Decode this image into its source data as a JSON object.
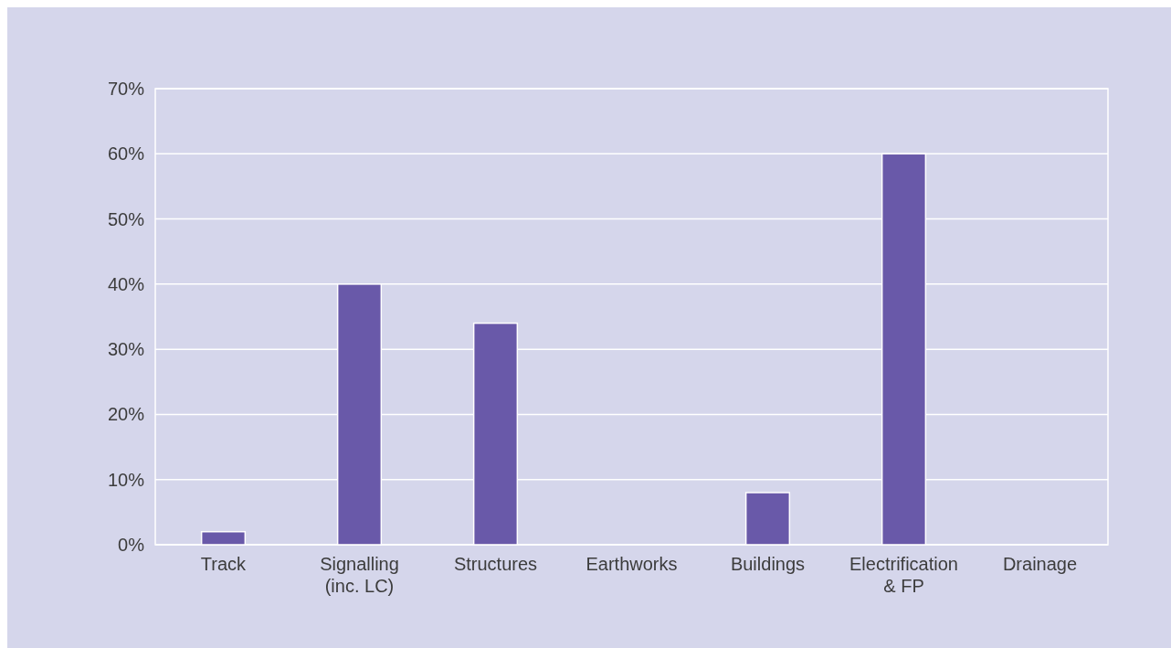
{
  "chart_data": {
    "type": "bar",
    "categories": [
      "Track",
      "Signalling\n(inc. LC)",
      "Structures",
      "Earthworks",
      "Buildings",
      "Electrification\n& FP",
      "Drainage"
    ],
    "values": [
      2,
      40,
      34,
      0,
      8,
      60,
      0
    ],
    "color": "#6959a9",
    "ylim": [
      0,
      70
    ],
    "yticks": [
      {
        "value": 0,
        "label": "0%"
      },
      {
        "value": 10,
        "label": "10%"
      },
      {
        "value": 20,
        "label": "20%"
      },
      {
        "value": 30,
        "label": "30%"
      },
      {
        "value": 40,
        "label": "40%"
      },
      {
        "value": 50,
        "label": "50%"
      },
      {
        "value": 60,
        "label": "60%"
      },
      {
        "value": 70,
        "label": "70%"
      }
    ],
    "grid": "y"
  }
}
